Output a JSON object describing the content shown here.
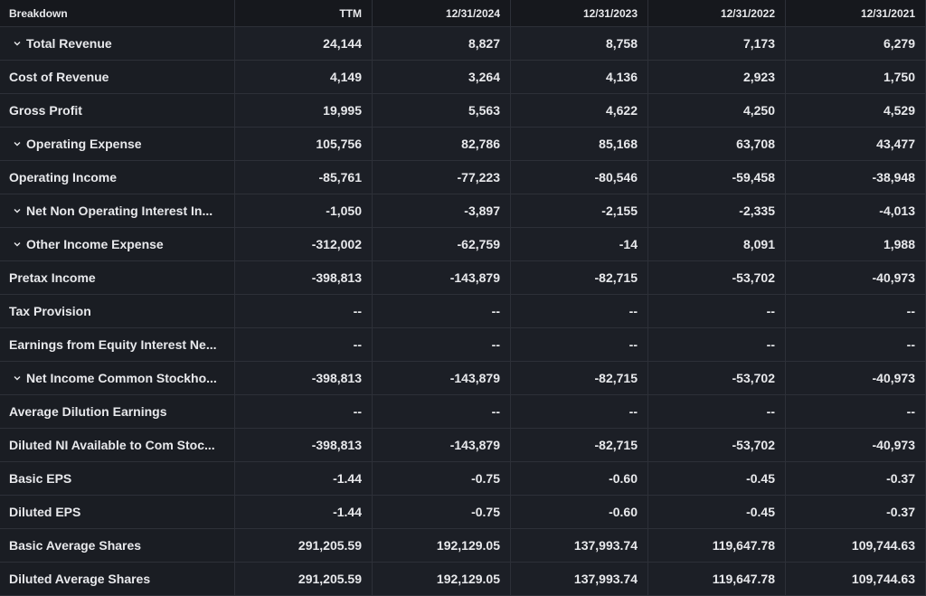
{
  "table": {
    "header": [
      "Breakdown",
      "TTM",
      "12/31/2024",
      "12/31/2023",
      "12/31/2022",
      "12/31/2021"
    ],
    "rows": [
      {
        "label": "Total Revenue",
        "expandable": true,
        "values": [
          "24,144",
          "8,827",
          "8,758",
          "7,173",
          "6,279"
        ]
      },
      {
        "label": "Cost of Revenue",
        "expandable": false,
        "values": [
          "4,149",
          "3,264",
          "4,136",
          "2,923",
          "1,750"
        ]
      },
      {
        "label": "Gross Profit",
        "expandable": false,
        "values": [
          "19,995",
          "5,563",
          "4,622",
          "4,250",
          "4,529"
        ]
      },
      {
        "label": "Operating Expense",
        "expandable": true,
        "values": [
          "105,756",
          "82,786",
          "85,168",
          "63,708",
          "43,477"
        ]
      },
      {
        "label": "Operating Income",
        "expandable": false,
        "values": [
          "-85,761",
          "-77,223",
          "-80,546",
          "-59,458",
          "-38,948"
        ]
      },
      {
        "label": "Net Non Operating Interest In...",
        "expandable": true,
        "values": [
          "-1,050",
          "-3,897",
          "-2,155",
          "-2,335",
          "-4,013"
        ]
      },
      {
        "label": "Other Income Expense",
        "expandable": true,
        "values": [
          "-312,002",
          "-62,759",
          "-14",
          "8,091",
          "1,988"
        ]
      },
      {
        "label": "Pretax Income",
        "expandable": false,
        "values": [
          "-398,813",
          "-143,879",
          "-82,715",
          "-53,702",
          "-40,973"
        ]
      },
      {
        "label": "Tax Provision",
        "expandable": false,
        "values": [
          "--",
          "--",
          "--",
          "--",
          "--"
        ]
      },
      {
        "label": "Earnings from Equity Interest Ne...",
        "expandable": false,
        "values": [
          "--",
          "--",
          "--",
          "--",
          "--"
        ]
      },
      {
        "label": "Net Income Common Stockho...",
        "expandable": true,
        "values": [
          "-398,813",
          "-143,879",
          "-82,715",
          "-53,702",
          "-40,973"
        ]
      },
      {
        "label": "Average Dilution Earnings",
        "expandable": false,
        "values": [
          "--",
          "--",
          "--",
          "--",
          "--"
        ]
      },
      {
        "label": "Diluted NI Available to Com Stoc...",
        "expandable": false,
        "values": [
          "-398,813",
          "-143,879",
          "-82,715",
          "-53,702",
          "-40,973"
        ]
      },
      {
        "label": "Basic EPS",
        "expandable": false,
        "values": [
          "-1.44",
          "-0.75",
          "-0.60",
          "-0.45",
          "-0.37"
        ]
      },
      {
        "label": "Diluted EPS",
        "expandable": false,
        "values": [
          "-1.44",
          "-0.75",
          "-0.60",
          "-0.45",
          "-0.37"
        ]
      },
      {
        "label": "Basic Average Shares",
        "expandable": false,
        "values": [
          "291,205.59",
          "192,129.05",
          "137,993.74",
          "119,647.78",
          "109,744.63"
        ]
      },
      {
        "label": "Diluted Average Shares",
        "expandable": false,
        "values": [
          "291,205.59",
          "192,129.05",
          "137,993.74",
          "119,647.78",
          "109,744.63"
        ]
      }
    ]
  }
}
